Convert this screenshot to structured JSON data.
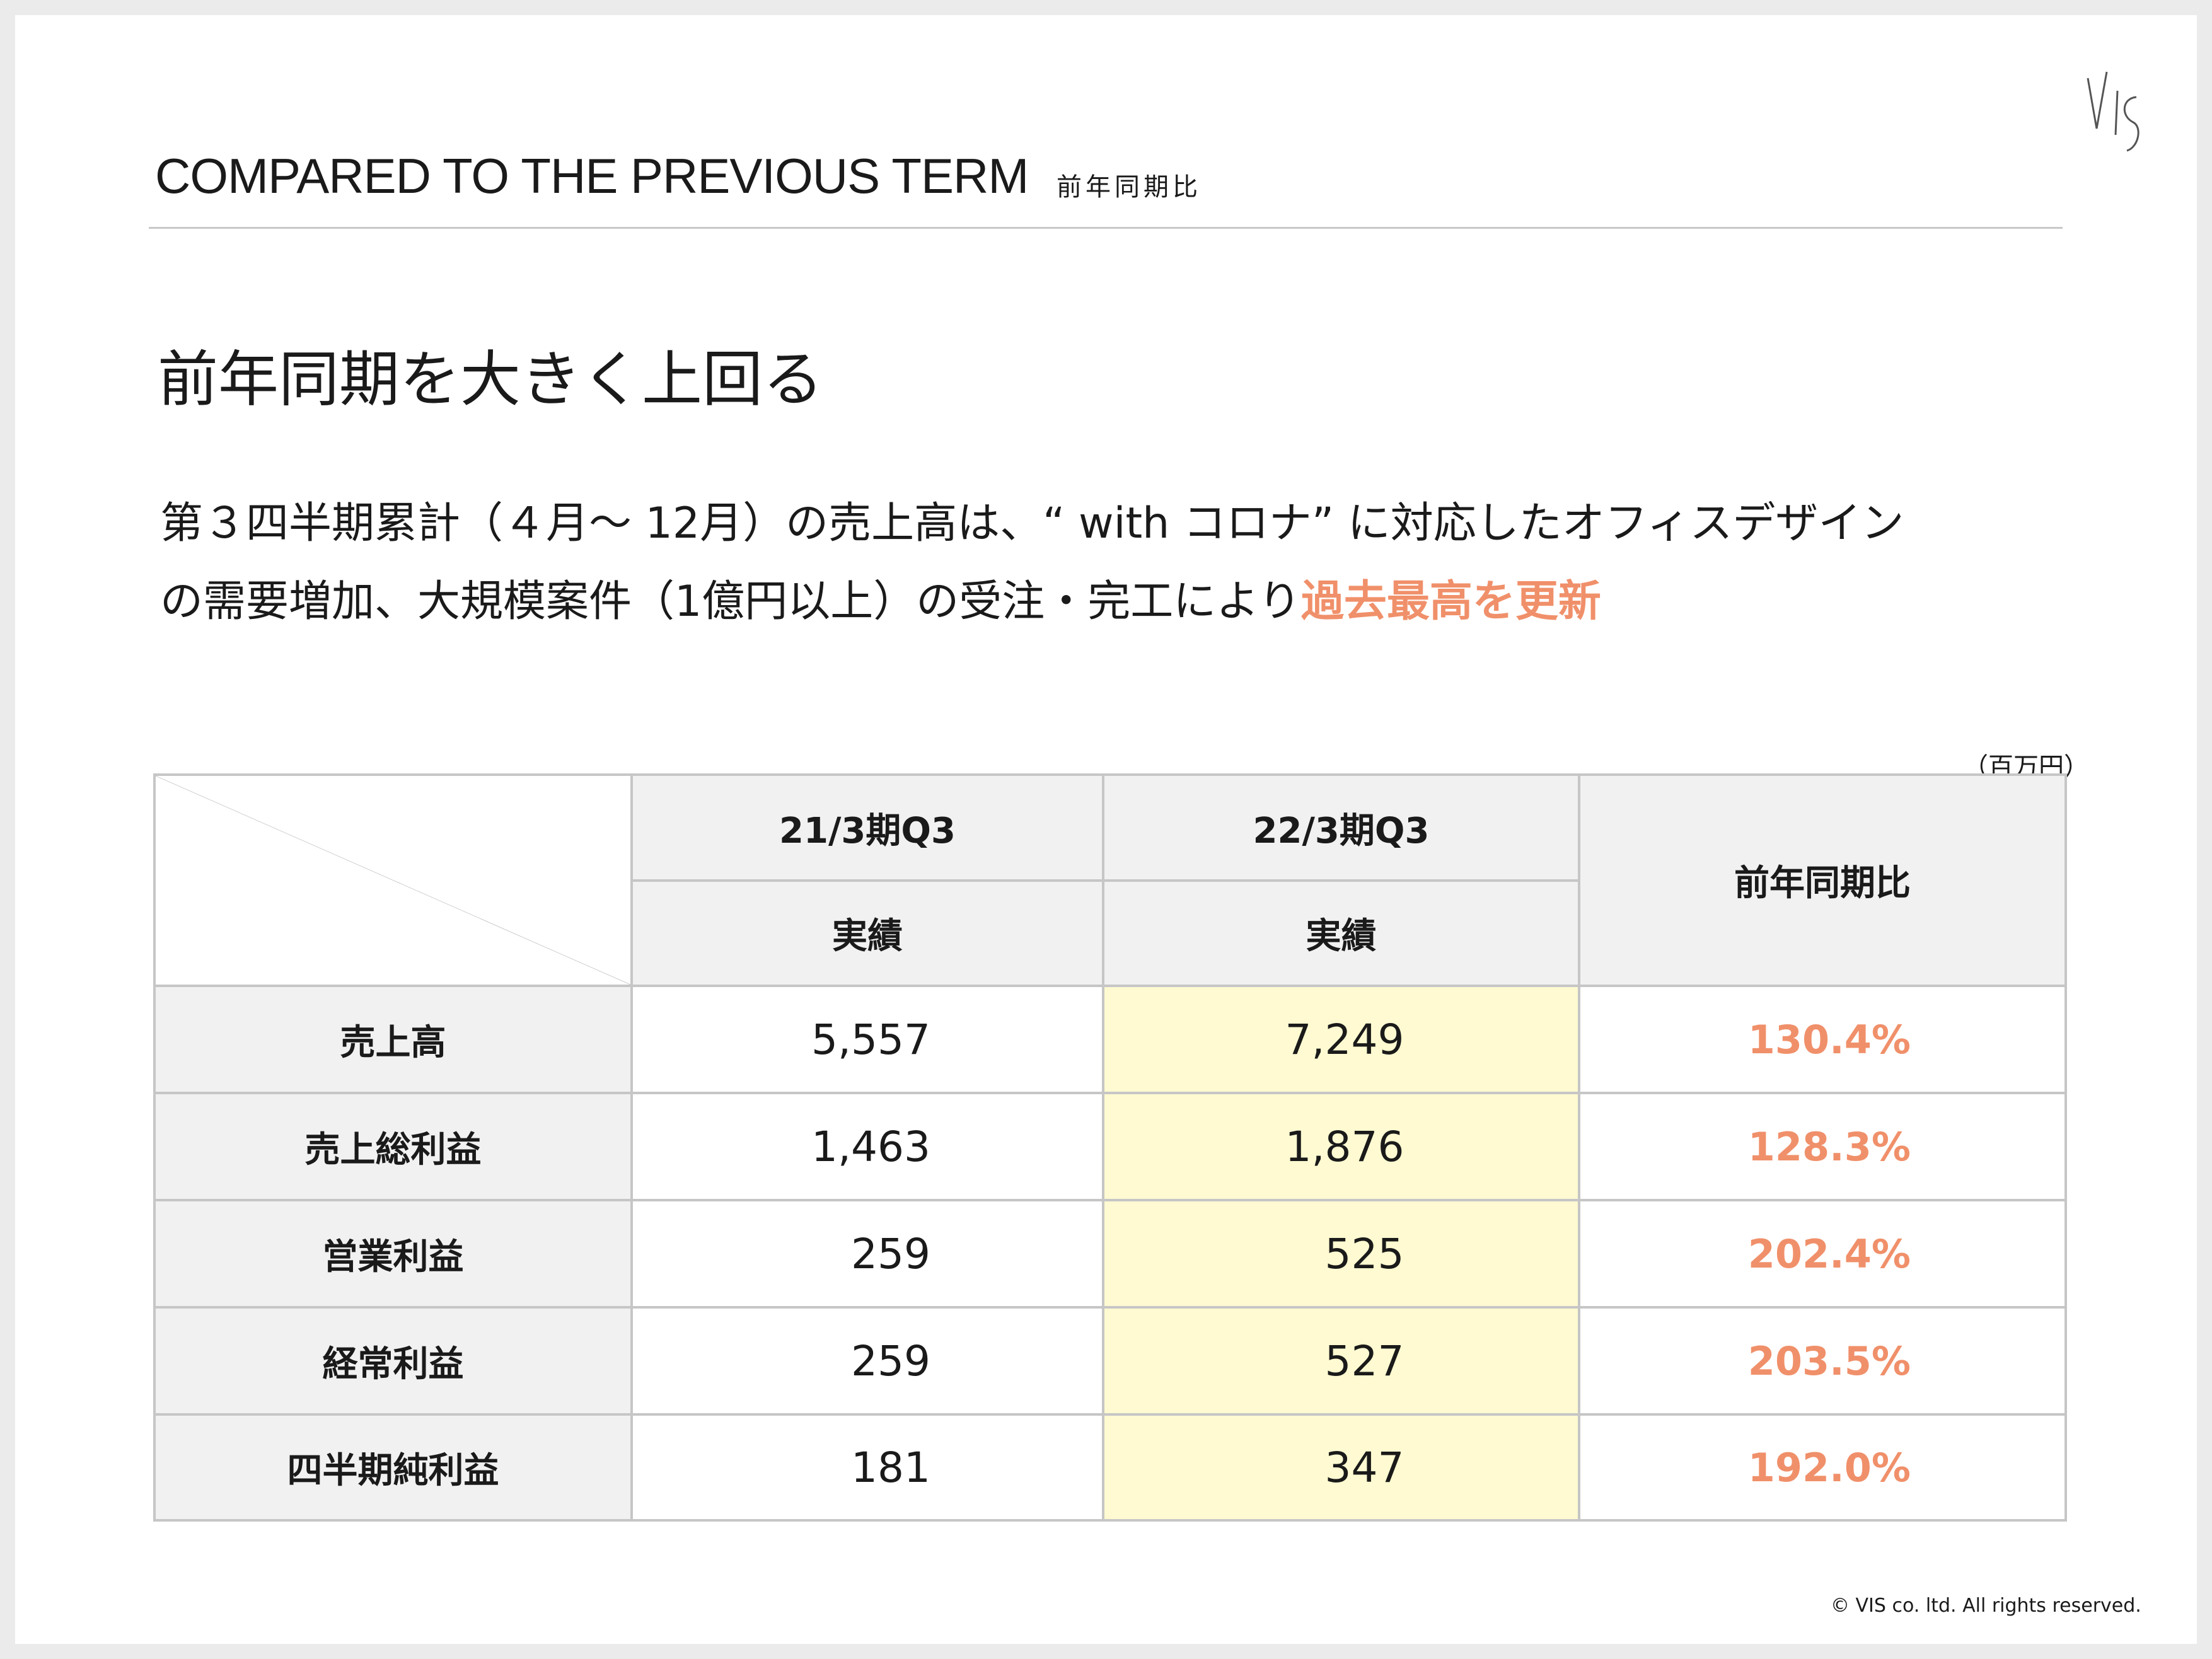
{
  "header": {
    "title": "COMPARED TO THE PREVIOUS TERM",
    "subtitle": "前年同期比"
  },
  "heading": "前年同期を大きく上回る",
  "lead": {
    "line1": "第３四半期累計（４月～ 12月）の売上高は、“ with コロナ” に対応したオフィスデザイン",
    "line2": "の需要増加、大規模案件（1億円以上）の受注・完工により",
    "highlight": "過去最高を更新"
  },
  "colors": {
    "accent": "#f0906a",
    "current_period_bg": "#fffad1",
    "header_bg": "#f1f1f1"
  },
  "table": {
    "unit": "（百万円）",
    "columns": {
      "prev_period": "21/3期Q3",
      "cur_period": "22/3期Q3",
      "actual": "実績",
      "yoy": "前年同期比"
    },
    "rows": [
      {
        "label": "売上高",
        "prev": "5,557",
        "cur": "7,249",
        "yoy": "130.4%"
      },
      {
        "label": "売上総利益",
        "prev": "1,463",
        "cur": "1,876",
        "yoy": "128.3%"
      },
      {
        "label": "営業利益",
        "prev": "259",
        "cur": "525",
        "yoy": "202.4%"
      },
      {
        "label": "経常利益",
        "prev": "259",
        "cur": "527",
        "yoy": "203.5%"
      },
      {
        "label": "四半期純利益",
        "prev": "181",
        "cur": "347",
        "yoy": "192.0%"
      }
    ]
  },
  "footer": {
    "copyright": "© VIS co. ltd. All rights reserved."
  },
  "logo": {
    "icon": "vis-logo"
  }
}
